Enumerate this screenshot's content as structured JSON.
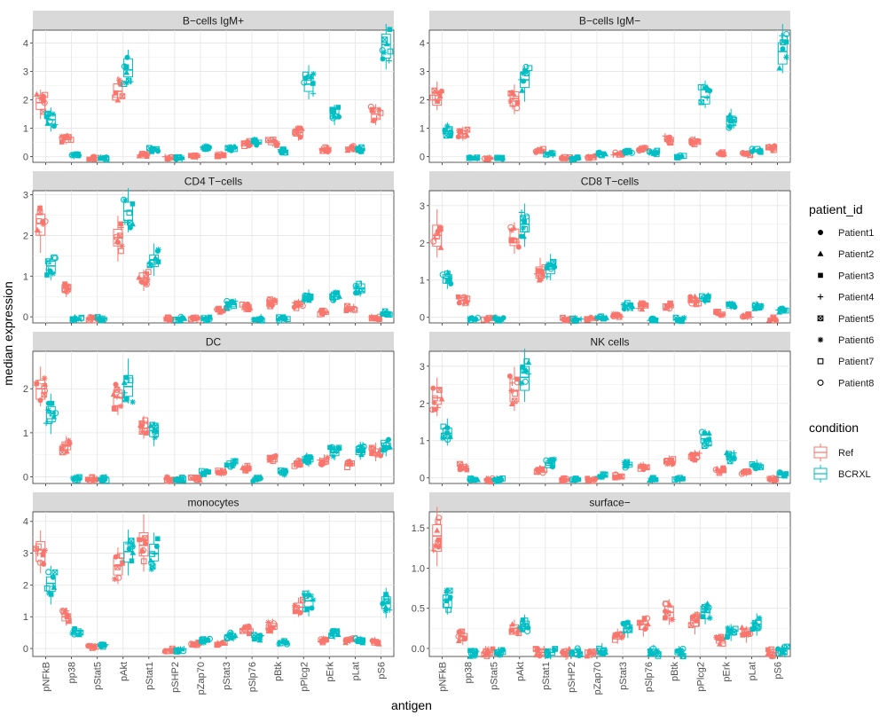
{
  "chart_data": {
    "type": "boxplot",
    "xlabel": "antigen",
    "ylabel": "median expression",
    "categories": [
      "pNFkB",
      "pp38",
      "pStat5",
      "pAkt",
      "pStat1",
      "pSHP2",
      "pZap70",
      "pStat3",
      "pSlp76",
      "pBtk",
      "pPlcg2",
      "pErk",
      "pLat",
      "pS6"
    ],
    "legend_patient": {
      "title": "patient_id",
      "items": [
        {
          "label": "Patient1",
          "shape": "circle-filled"
        },
        {
          "label": "Patient2",
          "shape": "triangle"
        },
        {
          "label": "Patient3",
          "shape": "square"
        },
        {
          "label": "Patient4",
          "shape": "plus"
        },
        {
          "label": "Patient5",
          "shape": "square-x"
        },
        {
          "label": "Patient6",
          "shape": "asterisk"
        },
        {
          "label": "Patient7",
          "shape": "square-open"
        },
        {
          "label": "Patient8",
          "shape": "circle-open"
        }
      ]
    },
    "legend_condition": {
      "title": "condition",
      "items": [
        {
          "label": "Ref",
          "color": "#F8766D"
        },
        {
          "label": "BCRXL",
          "color": "#00BFC4"
        }
      ]
    },
    "panels": [
      {
        "title": "B−cells IgM+",
        "ylim": [
          -0.2,
          4.45
        ],
        "ticks": [
          0,
          1,
          2,
          3,
          4
        ],
        "ref": [
          1.9,
          0.6,
          -0.05,
          2.3,
          0.05,
          -0.05,
          0.0,
          0.05,
          0.45,
          0.5,
          0.85,
          0.25,
          0.3,
          1.5
        ],
        "bcrxl": [
          1.3,
          0.05,
          -0.05,
          3.05,
          0.25,
          -0.05,
          0.3,
          0.3,
          0.5,
          0.2,
          2.55,
          1.5,
          0.25,
          3.95
        ]
      },
      {
        "title": "B−cells IgM−",
        "ylim": [
          -0.2,
          4.45
        ],
        "ticks": [
          0,
          1,
          2,
          3,
          4
        ],
        "ref": [
          2.0,
          0.8,
          -0.05,
          2.05,
          0.2,
          -0.05,
          0.0,
          0.1,
          0.25,
          0.6,
          0.55,
          0.1,
          0.1,
          0.3
        ],
        "bcrxl": [
          0.9,
          -0.05,
          -0.05,
          2.7,
          0.1,
          -0.05,
          0.1,
          0.15,
          0.15,
          0.0,
          2.1,
          1.25,
          0.2,
          3.7
        ]
      },
      {
        "title": "CD4 T−cells",
        "ylim": [
          -0.15,
          3.1
        ],
        "ticks": [
          0,
          1,
          2,
          3
        ],
        "ref": [
          2.3,
          0.7,
          -0.05,
          1.95,
          0.95,
          -0.05,
          -0.05,
          0.15,
          0.25,
          0.35,
          0.3,
          0.1,
          0.2,
          -0.05
        ],
        "bcrxl": [
          1.25,
          -0.05,
          -0.05,
          2.6,
          1.4,
          -0.05,
          -0.05,
          0.3,
          -0.05,
          -0.05,
          0.5,
          0.5,
          0.7,
          0.1
        ]
      },
      {
        "title": "CD8 T−cells",
        "ylim": [
          -0.15,
          3.4
        ],
        "ticks": [
          0,
          1,
          2,
          3
        ],
        "ref": [
          2.2,
          0.45,
          -0.05,
          2.1,
          1.2,
          -0.05,
          -0.05,
          0.05,
          0.3,
          0.3,
          0.45,
          0.1,
          0.05,
          -0.05
        ],
        "bcrxl": [
          1.05,
          -0.05,
          -0.05,
          2.5,
          1.3,
          -0.05,
          0.0,
          0.3,
          -0.05,
          -0.05,
          0.5,
          0.3,
          0.3,
          0.2
        ]
      },
      {
        "title": "DC",
        "ylim": [
          -0.15,
          2.85
        ],
        "ticks": [
          0,
          1,
          2
        ],
        "ref": [
          2.0,
          0.7,
          -0.05,
          1.8,
          1.1,
          -0.05,
          -0.05,
          0.1,
          0.2,
          0.4,
          0.3,
          0.35,
          0.3,
          0.55
        ],
        "bcrxl": [
          1.45,
          -0.05,
          -0.05,
          2.05,
          1.05,
          -0.05,
          0.1,
          0.3,
          -0.05,
          0.1,
          0.4,
          0.55,
          0.6,
          0.7
        ]
      },
      {
        "title": "NK cells",
        "ylim": [
          -0.15,
          3.4
        ],
        "ticks": [
          0,
          1,
          2,
          3
        ],
        "ref": [
          2.15,
          0.3,
          -0.05,
          2.35,
          0.2,
          -0.05,
          -0.05,
          0.05,
          0.3,
          0.45,
          0.6,
          0.2,
          0.15,
          -0.05
        ],
        "bcrxl": [
          1.2,
          -0.05,
          -0.05,
          2.7,
          0.4,
          -0.05,
          0.05,
          0.35,
          -0.05,
          -0.05,
          1.05,
          0.55,
          0.35,
          0.1
        ]
      },
      {
        "title": "monocytes",
        "ylim": [
          -0.25,
          4.3
        ],
        "ticks": [
          0,
          1,
          2,
          3,
          4
        ],
        "ref": [
          3.1,
          1.0,
          0.05,
          2.6,
          3.25,
          -0.05,
          0.15,
          0.15,
          0.6,
          0.7,
          1.3,
          0.25,
          0.25,
          0.2
        ],
        "bcrxl": [
          2.05,
          0.55,
          0.1,
          3.05,
          3.0,
          -0.05,
          0.25,
          0.4,
          0.35,
          0.2,
          1.5,
          0.5,
          0.25,
          1.45
        ]
      },
      {
        "title": "surface−",
        "ylim": [
          -0.1,
          1.7
        ],
        "ticks": [
          0.0,
          0.5,
          1.0,
          1.5
        ],
        "ref": [
          1.4,
          0.15,
          -0.05,
          0.25,
          -0.05,
          -0.05,
          -0.05,
          0.15,
          0.3,
          0.45,
          0.35,
          0.1,
          0.2,
          -0.05
        ],
        "bcrxl": [
          0.6,
          -0.05,
          -0.05,
          0.3,
          -0.05,
          -0.05,
          -0.03,
          0.25,
          -0.05,
          -0.05,
          0.45,
          0.2,
          0.3,
          -0.03
        ]
      }
    ]
  }
}
